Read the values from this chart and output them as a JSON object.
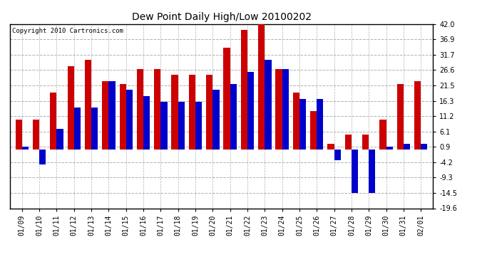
{
  "title": "Dew Point Daily High/Low 20100202",
  "copyright": "Copyright 2010 Cartronics.com",
  "dates": [
    "01/09",
    "01/10",
    "01/11",
    "01/12",
    "01/13",
    "01/14",
    "01/15",
    "01/16",
    "01/17",
    "01/18",
    "01/19",
    "01/20",
    "01/21",
    "01/22",
    "01/23",
    "01/24",
    "01/25",
    "01/26",
    "01/27",
    "01/28",
    "01/29",
    "01/30",
    "01/31",
    "02/01"
  ],
  "highs": [
    10.0,
    10.0,
    19.0,
    28.0,
    30.0,
    23.0,
    22.0,
    27.0,
    27.0,
    25.0,
    25.0,
    25.0,
    34.0,
    40.0,
    43.0,
    27.0,
    19.0,
    13.0,
    2.0,
    5.0,
    5.0,
    10.0,
    22.0,
    23.0
  ],
  "lows": [
    1.0,
    -5.0,
    7.0,
    14.0,
    14.0,
    23.0,
    20.0,
    18.0,
    16.0,
    16.0,
    16.0,
    20.0,
    22.0,
    26.0,
    30.0,
    27.0,
    17.0,
    17.0,
    -3.5,
    -14.5,
    -14.5,
    1.0,
    2.0,
    2.0
  ],
  "high_color": "#cc0000",
  "low_color": "#0000cc",
  "background_color": "#ffffff",
  "grid_color": "#b0b0b0",
  "ylim": [
    -19.6,
    42.0
  ],
  "yticks": [
    -19.6,
    -14.5,
    -9.3,
    -4.2,
    0.9,
    6.1,
    11.2,
    16.3,
    21.5,
    26.6,
    31.7,
    36.9,
    42.0
  ],
  "ytick_labels": [
    "-19.6",
    "-14.5",
    "-9.3",
    "-4.2",
    "0.9",
    "6.1",
    "11.2",
    "16.3",
    "21.5",
    "26.6",
    "31.7",
    "36.9",
    "42.0"
  ],
  "figwidth": 6.9,
  "figheight": 3.75,
  "dpi": 100
}
